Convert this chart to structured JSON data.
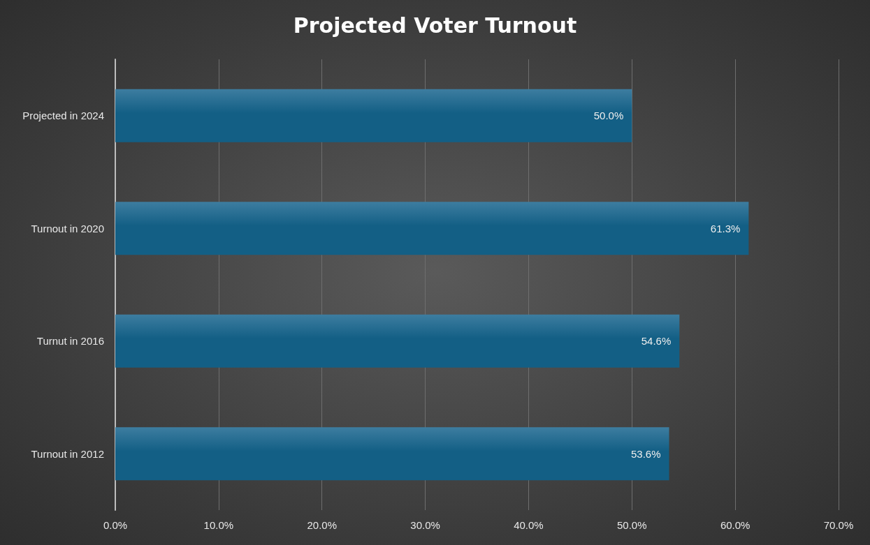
{
  "chart_data": {
    "type": "bar",
    "orientation": "horizontal",
    "title": "Projected Voter Turnout",
    "categories": [
      "Projected in 2024",
      "Turnout in 2020",
      "Turnut in 2016",
      "Turnout in 2012"
    ],
    "values": [
      50.0,
      61.3,
      54.6,
      53.6
    ],
    "value_labels": [
      "50.0%",
      "61.3%",
      "54.6%",
      "53.6%"
    ],
    "color": "#135f85",
    "xlim": [
      0,
      70
    ],
    "xticks": [
      {
        "value": 0,
        "label": "0.0%"
      },
      {
        "value": 10,
        "label": "10.0%"
      },
      {
        "value": 20,
        "label": "20.0%"
      },
      {
        "value": 30,
        "label": "30.0%"
      },
      {
        "value": 40,
        "label": "40.0%"
      },
      {
        "value": 50,
        "label": "50.0%"
      },
      {
        "value": 60,
        "label": "60.0%"
      },
      {
        "value": 70,
        "label": "70.0%"
      }
    ],
    "grid": "x"
  }
}
